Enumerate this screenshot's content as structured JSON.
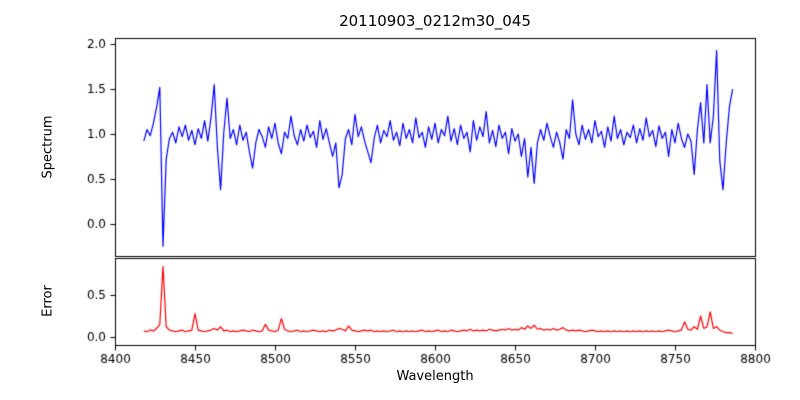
{
  "chart_data": {
    "type": "line",
    "title": "20110903_0212m30_045",
    "xlabel": "Wavelength",
    "layout": "two-stacked-subplots-shared-x",
    "legend": "none",
    "grid": false,
    "background_color": "#ffffff",
    "axis_color": "#000000",
    "xlim": [
      8400,
      8800
    ],
    "xticks": [
      8400,
      8450,
      8500,
      8550,
      8600,
      8650,
      8700,
      8750,
      8800
    ],
    "x": [
      8418,
      8420,
      8422,
      8424,
      8426,
      8428,
      8430,
      8432,
      8434,
      8436,
      8438,
      8440,
      8442,
      8444,
      8446,
      8448,
      8450,
      8452,
      8454,
      8456,
      8458,
      8460,
      8462,
      8464,
      8466,
      8468,
      8470,
      8472,
      8474,
      8476,
      8478,
      8480,
      8482,
      8484,
      8486,
      8488,
      8490,
      8492,
      8494,
      8496,
      8498,
      8500,
      8502,
      8504,
      8506,
      8508,
      8510,
      8512,
      8514,
      8516,
      8518,
      8520,
      8522,
      8524,
      8526,
      8528,
      8530,
      8532,
      8534,
      8536,
      8538,
      8540,
      8542,
      8544,
      8546,
      8548,
      8550,
      8552,
      8554,
      8556,
      8558,
      8560,
      8562,
      8564,
      8566,
      8568,
      8570,
      8572,
      8574,
      8576,
      8578,
      8580,
      8582,
      8584,
      8586,
      8588,
      8590,
      8592,
      8594,
      8596,
      8598,
      8600,
      8602,
      8604,
      8606,
      8608,
      8610,
      8612,
      8614,
      8616,
      8618,
      8620,
      8622,
      8624,
      8626,
      8628,
      8630,
      8632,
      8634,
      8636,
      8638,
      8640,
      8642,
      8644,
      8646,
      8648,
      8650,
      8652,
      8654,
      8656,
      8658,
      8660,
      8662,
      8664,
      8666,
      8668,
      8670,
      8672,
      8674,
      8676,
      8678,
      8680,
      8682,
      8684,
      8686,
      8688,
      8690,
      8692,
      8694,
      8696,
      8698,
      8700,
      8702,
      8704,
      8706,
      8708,
      8710,
      8712,
      8714,
      8716,
      8718,
      8720,
      8722,
      8724,
      8726,
      8728,
      8730,
      8732,
      8734,
      8736,
      8738,
      8740,
      8742,
      8744,
      8746,
      8748,
      8750,
      8752,
      8754,
      8756,
      8758,
      8760,
      8762,
      8764,
      8766,
      8768,
      8770,
      8772,
      8774,
      8776,
      8778,
      8780,
      8782,
      8784,
      8786
    ],
    "series": [
      {
        "name": "Spectrum",
        "color": "#0000ff",
        "ylim": [
          -0.36,
          2.07
        ],
        "yticks": [
          0.0,
          0.5,
          1.0,
          1.5,
          2.0
        ],
        "values": [
          0.92,
          1.05,
          0.98,
          1.12,
          1.3,
          1.52,
          -0.25,
          0.72,
          0.95,
          1.02,
          0.9,
          1.08,
          0.97,
          1.1,
          0.93,
          1.04,
          0.88,
          1.06,
          0.95,
          1.15,
          0.92,
          1.18,
          1.55,
          0.85,
          0.38,
          1.02,
          1.4,
          0.95,
          1.05,
          0.88,
          1.1,
          0.93,
          1.02,
          0.8,
          0.62,
          0.9,
          1.05,
          0.97,
          0.85,
          1.08,
          0.95,
          1.12,
          0.9,
          0.78,
          1.02,
          0.95,
          1.2,
          0.98,
          0.88,
          1.05,
          0.92,
          1.1,
          0.96,
          1.03,
          0.85,
          1.15,
          0.94,
          1.06,
          0.9,
          0.75,
          0.9,
          0.4,
          0.55,
          0.95,
          1.05,
          0.88,
          1.22,
          0.97,
          1.08,
          0.92,
          0.8,
          0.68,
          0.95,
          1.1,
          0.9,
          1.04,
          0.97,
          1.15,
          0.93,
          1.02,
          0.87,
          1.12,
          0.95,
          1.05,
          0.9,
          1.18,
          0.96,
          1.02,
          0.85,
          1.08,
          0.94,
          1.12,
          0.9,
          1.05,
          0.98,
          1.2,
          0.92,
          1.06,
          0.88,
          1.1,
          0.95,
          1.02,
          0.8,
          1.15,
          0.93,
          1.08,
          0.97,
          1.25,
          0.9,
          1.04,
          0.86,
          1.1,
          0.95,
          1.02,
          0.78,
          1.06,
          0.92,
          1.0,
          0.75,
          0.95,
          0.52,
          0.85,
          0.45,
          0.9,
          1.05,
          0.93,
          1.12,
          0.97,
          0.85,
          1.02,
          0.9,
          0.72,
          1.05,
          0.95,
          1.38,
          1.0,
          0.88,
          1.1,
          0.94,
          1.05,
          0.9,
          1.15,
          0.97,
          1.03,
          0.85,
          1.08,
          0.92,
          1.2,
          0.95,
          1.05,
          0.88,
          1.02,
          0.96,
          1.1,
          0.9,
          1.06,
          0.93,
          1.18,
          0.97,
          1.04,
          0.86,
          1.09,
          0.95,
          1.02,
          0.75,
          1.05,
          0.9,
          1.12,
          0.95,
          0.85,
          1.0,
          0.92,
          0.55,
          1.05,
          1.35,
          0.9,
          1.55,
          0.9,
          1.2,
          1.93,
          0.7,
          0.38,
          0.9,
          1.3,
          1.5
        ]
      },
      {
        "name": "Error",
        "color": "#ff0000",
        "ylim": [
          -0.1,
          0.95
        ],
        "yticks": [
          0.0,
          0.5
        ],
        "values": [
          0.07,
          0.06,
          0.08,
          0.07,
          0.1,
          0.15,
          0.85,
          0.12,
          0.08,
          0.07,
          0.06,
          0.07,
          0.08,
          0.06,
          0.07,
          0.08,
          0.28,
          0.08,
          0.07,
          0.06,
          0.07,
          0.08,
          0.1,
          0.08,
          0.12,
          0.07,
          0.08,
          0.06,
          0.07,
          0.06,
          0.07,
          0.08,
          0.07,
          0.06,
          0.08,
          0.07,
          0.06,
          0.07,
          0.15,
          0.08,
          0.07,
          0.06,
          0.08,
          0.22,
          0.09,
          0.07,
          0.06,
          0.07,
          0.08,
          0.06,
          0.07,
          0.06,
          0.07,
          0.08,
          0.07,
          0.06,
          0.07,
          0.06,
          0.08,
          0.07,
          0.08,
          0.1,
          0.09,
          0.07,
          0.13,
          0.08,
          0.07,
          0.06,
          0.07,
          0.08,
          0.07,
          0.08,
          0.06,
          0.07,
          0.06,
          0.07,
          0.06,
          0.07,
          0.08,
          0.06,
          0.07,
          0.06,
          0.07,
          0.06,
          0.07,
          0.06,
          0.07,
          0.08,
          0.06,
          0.07,
          0.06,
          0.07,
          0.08,
          0.06,
          0.07,
          0.06,
          0.08,
          0.07,
          0.06,
          0.07,
          0.08,
          0.07,
          0.09,
          0.07,
          0.08,
          0.07,
          0.08,
          0.07,
          0.09,
          0.08,
          0.07,
          0.08,
          0.09,
          0.08,
          0.1,
          0.08,
          0.09,
          0.08,
          0.11,
          0.09,
          0.13,
          0.1,
          0.14,
          0.09,
          0.1,
          0.08,
          0.09,
          0.08,
          0.1,
          0.08,
          0.09,
          0.11,
          0.08,
          0.07,
          0.08,
          0.07,
          0.08,
          0.07,
          0.06,
          0.07,
          0.08,
          0.07,
          0.06,
          0.07,
          0.06,
          0.07,
          0.06,
          0.07,
          0.06,
          0.07,
          0.06,
          0.07,
          0.06,
          0.07,
          0.06,
          0.07,
          0.06,
          0.07,
          0.06,
          0.07,
          0.06,
          0.07,
          0.06,
          0.07,
          0.08,
          0.07,
          0.06,
          0.07,
          0.08,
          0.18,
          0.09,
          0.08,
          0.12,
          0.09,
          0.25,
          0.1,
          0.12,
          0.3,
          0.1,
          0.12,
          0.08,
          0.06,
          0.05,
          0.05,
          0.04
        ]
      }
    ]
  }
}
